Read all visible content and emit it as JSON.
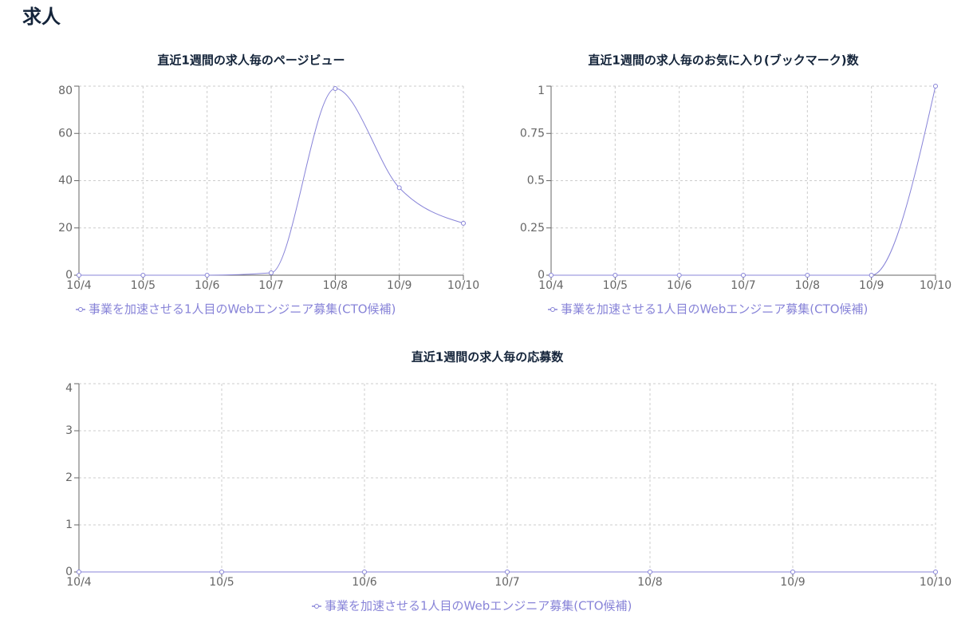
{
  "title": "求人",
  "chart_data": [
    {
      "type": "line",
      "title": "直近1週間の求人毎のページビュー",
      "categories": [
        "10/4",
        "10/5",
        "10/6",
        "10/7",
        "10/8",
        "10/9",
        "10/10"
      ],
      "series": [
        {
          "name": "事業を加速させる1人目のWebエンジニア募集(CTO候補)",
          "color": "#8884d8",
          "values": [
            0,
            0,
            0,
            1,
            79,
            37,
            22
          ]
        }
      ],
      "ylim": [
        0,
        80
      ],
      "yticks": [
        0,
        20,
        40,
        60,
        80
      ],
      "grid": true,
      "curve": "monotone"
    },
    {
      "type": "line",
      "title": "直近1週間の求人毎のお気に入り(ブックマーク)数",
      "categories": [
        "10/4",
        "10/5",
        "10/6",
        "10/7",
        "10/8",
        "10/9",
        "10/10"
      ],
      "series": [
        {
          "name": "事業を加速させる1人目のWebエンジニア募集(CTO候補)",
          "color": "#8884d8",
          "values": [
            0,
            0,
            0,
            0,
            0,
            0,
            1
          ]
        }
      ],
      "ylim": [
        0,
        1
      ],
      "yticks": [
        0,
        0.25,
        0.5,
        0.75,
        1
      ],
      "grid": true,
      "curve": "monotone"
    },
    {
      "type": "line",
      "title": "直近1週間の求人毎の応募数",
      "categories": [
        "10/4",
        "10/5",
        "10/6",
        "10/7",
        "10/8",
        "10/9",
        "10/10"
      ],
      "series": [
        {
          "name": "事業を加速させる1人目のWebエンジニア募集(CTO候補)",
          "color": "#8884d8",
          "values": [
            0,
            0,
            0,
            0,
            0,
            0,
            0
          ]
        }
      ],
      "ylim": [
        0,
        4
      ],
      "yticks": [
        0,
        1,
        2,
        3,
        4
      ],
      "grid": true,
      "curve": "monotone"
    }
  ]
}
